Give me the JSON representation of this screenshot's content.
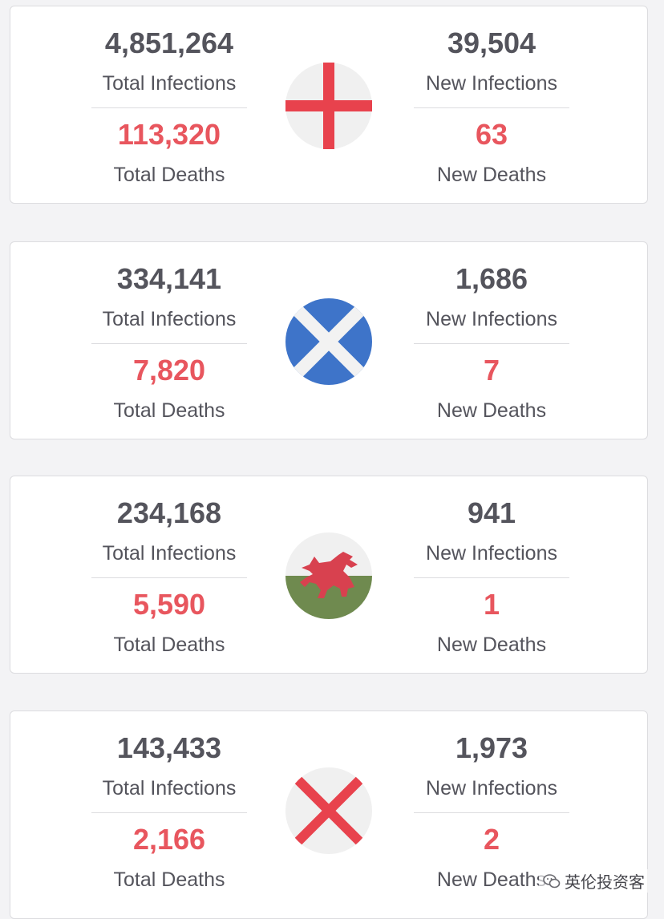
{
  "cards": [
    {
      "flag": "england-flag-icon",
      "total_infections": "4,851,264",
      "total_infections_label": "Total Infections",
      "total_deaths": "113,320",
      "total_deaths_label": "Total Deaths",
      "new_infections": "39,504",
      "new_infections_label": "New Infections",
      "new_deaths": "63",
      "new_deaths_label": "New Deaths"
    },
    {
      "flag": "scotland-flag-icon",
      "total_infections": "334,141",
      "total_infections_label": "Total Infections",
      "total_deaths": "7,820",
      "total_deaths_label": "Total Deaths",
      "new_infections": "1,686",
      "new_infections_label": "New Infections",
      "new_deaths": "7",
      "new_deaths_label": "New Deaths"
    },
    {
      "flag": "wales-flag-icon",
      "total_infections": "234,168",
      "total_infections_label": "Total Infections",
      "total_deaths": "5,590",
      "total_deaths_label": "Total Deaths",
      "new_infections": "941",
      "new_infections_label": "New Infections",
      "new_deaths": "1",
      "new_deaths_label": "New Deaths"
    },
    {
      "flag": "northern-ireland-flag-icon",
      "total_infections": "143,433",
      "total_infections_label": "Total Infections",
      "total_deaths": "2,166",
      "total_deaths_label": "Total Deaths",
      "new_infections": "1,973",
      "new_infections_label": "New Infections",
      "new_deaths": "2",
      "new_deaths_label": "New Deaths"
    }
  ],
  "watermark": {
    "icon": "wechat-icon",
    "text": "英伦投资客"
  },
  "colors": {
    "number": "#54545c",
    "deaths": "#e8565e",
    "england_red": "#e8424d",
    "scotland_blue": "#3e74c9",
    "wales_red": "#d8414f",
    "wales_green": "#6f8a4f"
  }
}
